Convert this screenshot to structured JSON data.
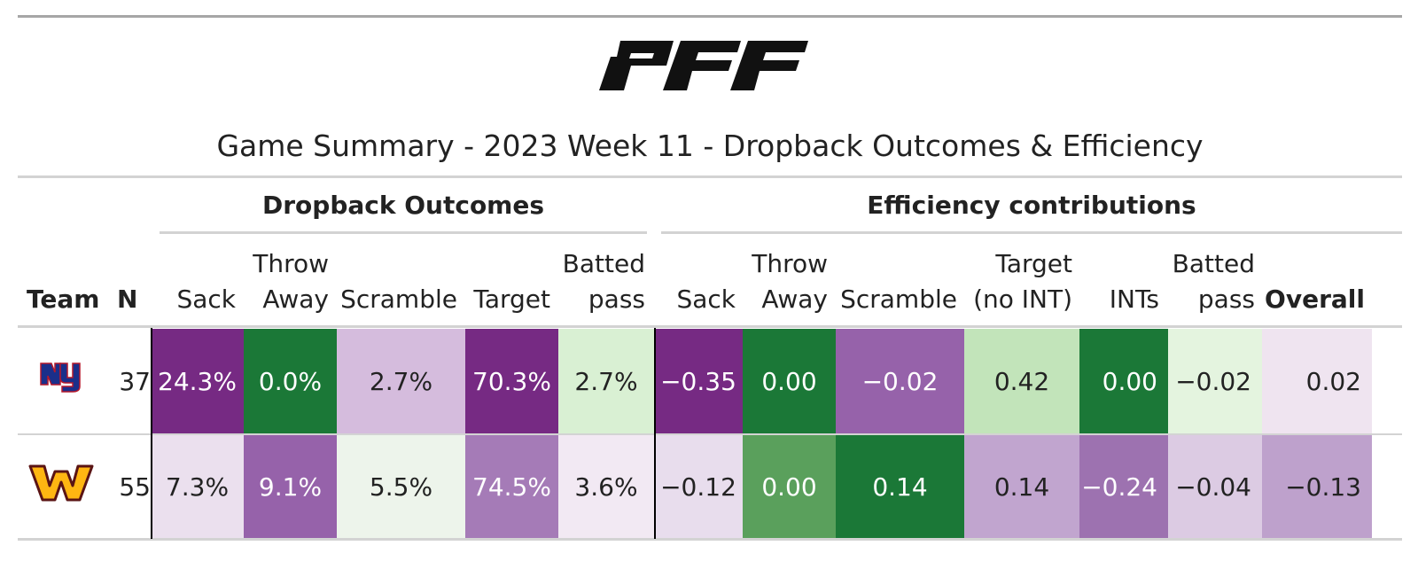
{
  "brand": {
    "logo_text": "PFF"
  },
  "title": "Game Summary - 2023 Week 11 - Dropback Outcomes & Efficiency",
  "spanners": {
    "outcomes": "Dropback Outcomes",
    "efficiency": "Efficiency contributions"
  },
  "headers": {
    "team": "Team",
    "n": "N",
    "out_sack": "Sack",
    "out_throwaway_1": "Throw",
    "out_throwaway_2": "Away",
    "out_scramble": "Scramble",
    "out_target": "Target",
    "out_batted_1": "Batted",
    "out_batted_2": "pass",
    "eff_sack": "Sack",
    "eff_throwaway_1": "Throw",
    "eff_throwaway_2": "Away",
    "eff_scramble": "Scramble",
    "eff_target_1": "Target",
    "eff_target_2": "(no INT)",
    "eff_ints": "INTs",
    "eff_batted_1": "Batted",
    "eff_batted_2": "pass",
    "eff_overall": "Overall"
  },
  "rows": [
    {
      "team_icon": "giants-ny-logo",
      "n": "37",
      "cells": [
        {
          "text": "24.3%",
          "bg": "#762a83",
          "fg": "#ffffff"
        },
        {
          "text": "0.0%",
          "bg": "#1b7837",
          "fg": "#ffffff"
        },
        {
          "text": "2.7%",
          "bg": "#d5bcdd",
          "fg": "#222222"
        },
        {
          "text": "70.3%",
          "bg": "#762a83",
          "fg": "#ffffff"
        },
        {
          "text": "2.7%",
          "bg": "#d9f0d3",
          "fg": "#222222"
        },
        {
          "text": "−0.35",
          "bg": "#762a83",
          "fg": "#ffffff"
        },
        {
          "text": "0.00",
          "bg": "#1b7837",
          "fg": "#ffffff"
        },
        {
          "text": "−0.02",
          "bg": "#9662aa",
          "fg": "#ffffff"
        },
        {
          "text": "0.42",
          "bg": "#c2e4ba",
          "fg": "#222222"
        },
        {
          "text": "0.00",
          "bg": "#1b7837",
          "fg": "#ffffff"
        },
        {
          "text": "−0.02",
          "bg": "#e4f4df",
          "fg": "#222222"
        },
        {
          "text": "0.02",
          "bg": "#efe4f0",
          "fg": "#222222"
        }
      ]
    },
    {
      "team_icon": "commanders-w-logo",
      "n": "55",
      "cells": [
        {
          "text": "7.3%",
          "bg": "#ebe0ee",
          "fg": "#222222"
        },
        {
          "text": "9.1%",
          "bg": "#9662aa",
          "fg": "#ffffff"
        },
        {
          "text": "5.5%",
          "bg": "#edf4eb",
          "fg": "#222222"
        },
        {
          "text": "74.5%",
          "bg": "#a57bb7",
          "fg": "#ffffff"
        },
        {
          "text": "3.6%",
          "bg": "#f2e9f3",
          "fg": "#222222"
        },
        {
          "text": "−0.12",
          "bg": "#e8dded",
          "fg": "#222222"
        },
        {
          "text": "0.00",
          "bg": "#5aa05c",
          "fg": "#ffffff"
        },
        {
          "text": "0.14",
          "bg": "#1b7837",
          "fg": "#ffffff"
        },
        {
          "text": "0.14",
          "bg": "#c1a5cf",
          "fg": "#222222"
        },
        {
          "text": "−0.24",
          "bg": "#9d72b0",
          "fg": "#ffffff"
        },
        {
          "text": "−0.04",
          "bg": "#dccbe3",
          "fg": "#222222"
        },
        {
          "text": "−0.13",
          "bg": "#bea1cc",
          "fg": "#222222"
        }
      ]
    }
  ]
}
